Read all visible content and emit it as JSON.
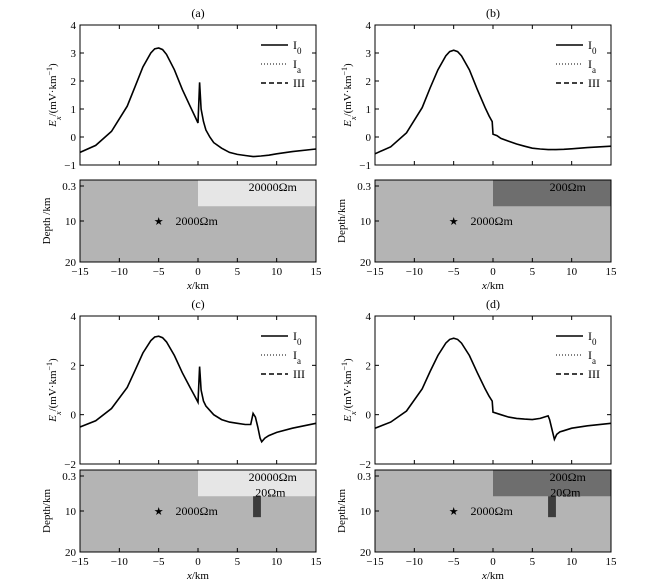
{
  "chart_data": [
    {
      "type": "line",
      "panel": "(a)",
      "ylabel": "Ex/(mV·km⁻¹)",
      "ylabel_parts": {
        "main": "E",
        "sub": "x",
        "rest": "/(mV·km",
        "sup": "−1",
        "close": ")"
      },
      "ylim": [
        -1,
        4
      ],
      "yticks": [
        "4",
        "3",
        "2",
        "1",
        "0",
        "−1"
      ],
      "xlim": [
        -15,
        15
      ],
      "xticks": [
        "−15",
        "−10",
        "−5",
        "0",
        "5",
        "10",
        "15"
      ],
      "xlabel": "",
      "legend": [
        {
          "name": "I0",
          "base": "I",
          "sub": "0",
          "style": "solid"
        },
        {
          "name": "Ia",
          "base": "I",
          "sub": "a",
          "style": "dotted"
        },
        {
          "name": "III",
          "base": "III",
          "sub": "",
          "style": "dashed"
        }
      ],
      "series": [
        {
          "name": "I0",
          "x": [
            -15,
            -13,
            -11,
            -9,
            -8,
            -7,
            -6,
            -5.5,
            -5,
            -4.5,
            -4,
            -3,
            -2,
            -1,
            -0.5,
            0,
            0.2,
            0.4,
            0.7,
            1,
            1.5,
            2,
            3,
            4,
            5,
            6,
            7,
            8,
            9,
            10,
            12,
            15
          ],
          "y": [
            -0.55,
            -0.3,
            0.2,
            1.1,
            1.8,
            2.5,
            3.0,
            3.15,
            3.18,
            3.12,
            2.95,
            2.4,
            1.7,
            1.1,
            0.8,
            0.5,
            1.95,
            1.0,
            0.55,
            0.25,
            0,
            -0.2,
            -0.4,
            -0.55,
            -0.62,
            -0.66,
            -0.7,
            -0.68,
            -0.65,
            -0.6,
            -0.52,
            -0.43
          ]
        }
      ],
      "model": {
        "depth_label": "Depth /km",
        "depth_ticks": [
          "0.3",
          "10",
          "20"
        ],
        "xlabel": "x/km",
        "layers": [
          {
            "label": "20000Ωm",
            "x0": 0,
            "x1": 15,
            "d0": 0,
            "d1": 0.8,
            "color": "#e6e6e6"
          }
        ],
        "bodies": [],
        "background_label": "2000Ωm",
        "source": {
          "x": -5,
          "depth": 10
        },
        "background_color": "#b4b4b4"
      }
    },
    {
      "type": "line",
      "panel": "(b)",
      "ylabel": "Ex/(mV·km⁻¹)",
      "ylabel_parts": {
        "main": "E",
        "sub": "x",
        "rest": "/(mV·km",
        "sup": "−1",
        "close": ")"
      },
      "ylim": [
        -1,
        4
      ],
      "yticks": [
        "4",
        "3",
        "2",
        "1",
        "0",
        "−1"
      ],
      "xlim": [
        -15,
        15
      ],
      "xticks": [
        "−15",
        "−10",
        "−5",
        "0",
        "5",
        "10",
        "15"
      ],
      "xlabel": "",
      "legend": [
        {
          "name": "I0",
          "base": "I",
          "sub": "0",
          "style": "solid"
        },
        {
          "name": "Ia",
          "base": "I",
          "sub": "a",
          "style": "dotted"
        },
        {
          "name": "III",
          "base": "III",
          "sub": "",
          "style": "dashed"
        }
      ],
      "series": [
        {
          "name": "I0",
          "x": [
            -15,
            -13,
            -11,
            -9,
            -8,
            -7,
            -6,
            -5.5,
            -5,
            -4.5,
            -4,
            -3,
            -2,
            -1,
            -0.5,
            -0.1,
            0,
            0.5,
            1,
            2,
            3,
            4,
            5,
            6,
            7,
            8,
            9,
            10,
            12,
            15
          ],
          "y": [
            -0.6,
            -0.35,
            0.15,
            1.05,
            1.75,
            2.4,
            2.9,
            3.05,
            3.1,
            3.05,
            2.9,
            2.4,
            1.7,
            1.05,
            0.75,
            0.55,
            0.1,
            0.05,
            -0.05,
            -0.15,
            -0.25,
            -0.33,
            -0.4,
            -0.43,
            -0.45,
            -0.45,
            -0.44,
            -0.42,
            -0.38,
            -0.33
          ]
        }
      ],
      "model": {
        "depth_label": "Depth/km",
        "depth_ticks": [
          "0.3",
          "10",
          "20"
        ],
        "xlabel": "x/km",
        "layers": [
          {
            "label": "200Ωm",
            "x0": 0,
            "x1": 15,
            "d0": 0,
            "d1": 0.8,
            "color": "#6e6e6e"
          }
        ],
        "bodies": [],
        "background_label": "2000Ωm",
        "source": {
          "x": -5,
          "depth": 10
        },
        "background_color": "#b4b4b4"
      }
    },
    {
      "type": "line",
      "panel": "(c)",
      "ylabel": "Ex/(mV·km⁻¹)",
      "ylabel_parts": {
        "main": "E",
        "sub": "x",
        "rest": "/(mV·km",
        "sup": "−1",
        "close": ")"
      },
      "ylim": [
        -2,
        4
      ],
      "yticks": [
        "4",
        "2",
        "0",
        "−2"
      ],
      "xlim": [
        -15,
        15
      ],
      "xticks": [
        "−15",
        "−10",
        "−5",
        "0",
        "5",
        "10",
        "15"
      ],
      "xlabel": "",
      "legend": [
        {
          "name": "I0",
          "base": "I",
          "sub": "0",
          "style": "solid"
        },
        {
          "name": "Ia",
          "base": "I",
          "sub": "a",
          "style": "dotted"
        },
        {
          "name": "III",
          "base": "III",
          "sub": "",
          "style": "dashed"
        }
      ],
      "series": [
        {
          "name": "I0",
          "x": [
            -15,
            -13,
            -11,
            -9,
            -8,
            -7,
            -6,
            -5.5,
            -5,
            -4.5,
            -4,
            -3,
            -2,
            -1,
            -0.5,
            0,
            0.2,
            0.4,
            0.7,
            1,
            2,
            3,
            4,
            5,
            6,
            6.7,
            7,
            7.3,
            7.6,
            7.9,
            8.1,
            8.5,
            9,
            10,
            12,
            15
          ],
          "y": [
            -0.5,
            -0.25,
            0.25,
            1.1,
            1.8,
            2.5,
            3.0,
            3.15,
            3.18,
            3.12,
            2.95,
            2.4,
            1.7,
            1.1,
            0.8,
            0.5,
            1.95,
            1.0,
            0.55,
            0.35,
            0,
            -0.2,
            -0.3,
            -0.35,
            -0.4,
            -0.4,
            0.05,
            -0.1,
            -0.5,
            -0.95,
            -1.1,
            -0.95,
            -0.85,
            -0.72,
            -0.55,
            -0.35
          ]
        }
      ],
      "model": {
        "depth_label": "Depth/km",
        "depth_ticks": [
          "0.3",
          "10",
          "20"
        ],
        "xlabel": "x/km",
        "layers": [
          {
            "label": "20000Ωm",
            "x0": 0,
            "x1": 15,
            "d0": 0,
            "d1": 0.8,
            "color": "#e6e6e6"
          }
        ],
        "bodies": [
          {
            "label": "20Ωm",
            "x0": 7,
            "x1": 8,
            "d0": 0.8,
            "d1": 11.5,
            "color": "#3c3c3c"
          }
        ],
        "background_label": "2000Ωm",
        "source": {
          "x": -5,
          "depth": 10
        },
        "background_color": "#b4b4b4"
      }
    },
    {
      "type": "line",
      "panel": "(d)",
      "ylabel": "Ex/(mV·km⁻¹)",
      "ylabel_parts": {
        "main": "E",
        "sub": "x",
        "rest": "/(mV·km",
        "sup": "−1",
        "close": ")"
      },
      "ylim": [
        -2,
        4
      ],
      "yticks": [
        "4",
        "2",
        "0",
        "−2"
      ],
      "xlim": [
        -15,
        15
      ],
      "xticks": [
        "−15",
        "−10",
        "−5",
        "0",
        "5",
        "10",
        "15"
      ],
      "xlabel": "",
      "legend": [
        {
          "name": "I0",
          "base": "I",
          "sub": "0",
          "style": "solid"
        },
        {
          "name": "Ia",
          "base": "I",
          "sub": "a",
          "style": "dotted"
        },
        {
          "name": "III",
          "base": "III",
          "sub": "",
          "style": "dashed"
        }
      ],
      "series": [
        {
          "name": "I0",
          "x": [
            -15,
            -13,
            -11,
            -9,
            -8,
            -7,
            -6,
            -5.5,
            -5,
            -4.5,
            -4,
            -3,
            -2,
            -1,
            -0.5,
            -0.1,
            0,
            1,
            2,
            3,
            4,
            5,
            6,
            6.5,
            7,
            7.2,
            7.5,
            7.8,
            8.1,
            8.5,
            9,
            10,
            12,
            15
          ],
          "y": [
            -0.55,
            -0.3,
            0.15,
            1.05,
            1.75,
            2.4,
            2.9,
            3.05,
            3.1,
            3.05,
            2.9,
            2.4,
            1.7,
            1.05,
            0.75,
            0.55,
            0.1,
            0,
            -0.1,
            -0.15,
            -0.18,
            -0.2,
            -0.15,
            -0.1,
            -0.05,
            -0.2,
            -0.6,
            -1.0,
            -0.8,
            -0.7,
            -0.65,
            -0.55,
            -0.45,
            -0.35
          ]
        }
      ],
      "model": {
        "depth_label": "Depth/km",
        "depth_ticks": [
          "0.3",
          "10",
          "20"
        ],
        "xlabel": "x/km",
        "layers": [
          {
            "label": "200Ωm",
            "x0": 0,
            "x1": 15,
            "d0": 0,
            "d1": 0.8,
            "color": "#6e6e6e"
          }
        ],
        "bodies": [
          {
            "label": "20Ωm",
            "x0": 7,
            "x1": 8,
            "d0": 0.8,
            "d1": 11.5,
            "color": "#3c3c3c"
          }
        ],
        "background_label": "2000Ωm",
        "source": {
          "x": -5,
          "depth": 10
        },
        "background_color": "#b4b4b4"
      }
    }
  ]
}
